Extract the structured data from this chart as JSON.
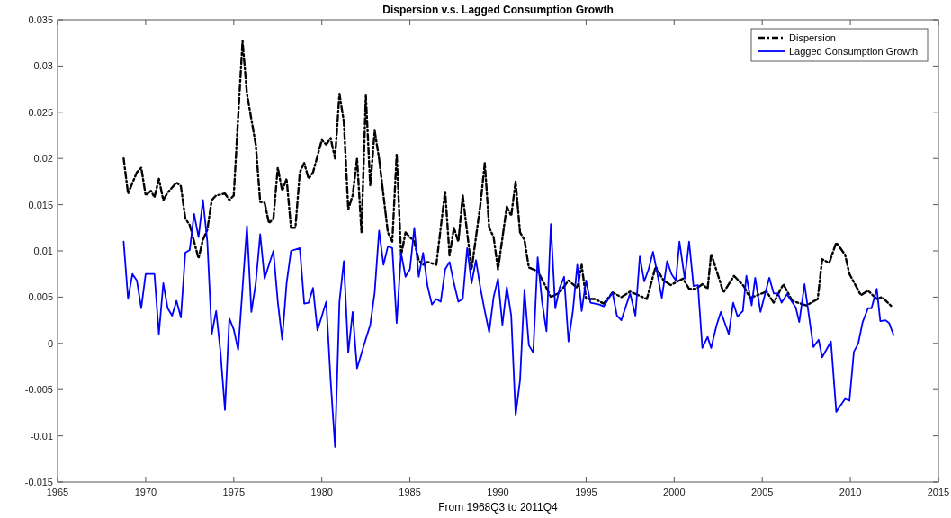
{
  "chart_data": {
    "type": "line",
    "title": "Dispersion v.s. Lagged Consumption Growth",
    "xlabel": "From 1968Q3 to 2011Q4",
    "xlim": [
      1965,
      2015
    ],
    "xticks": [
      1965,
      1970,
      1975,
      1980,
      1985,
      1990,
      1995,
      2000,
      2005,
      2010,
      2015
    ],
    "ylim": [
      -0.015,
      0.035
    ],
    "yticks": [
      -0.015,
      -0.01,
      -0.005,
      0,
      0.005,
      0.01,
      0.015,
      0.02,
      0.025,
      0.03,
      0.035
    ],
    "grid": false,
    "legend": "top right",
    "series": [
      {
        "name": "Dispersion",
        "color": "#000000",
        "line_style": "dashed",
        "x": [
          1968.75,
          1969,
          1969.5,
          1969.75,
          1970,
          1970.3,
          1970.5,
          1970.75,
          1971,
          1971.25,
          1971.75,
          1972,
          1972.25,
          1972.5,
          1973,
          1973.25,
          1973.5,
          1973.75,
          1974,
          1974.5,
          1974.75,
          1975,
          1975.25,
          1975.5,
          1975.75,
          1976.25,
          1976.5,
          1976.75,
          1977,
          1977.25,
          1977.5,
          1977.75,
          1978,
          1978.25,
          1978.5,
          1978.75,
          1979,
          1979.25,
          1979.5,
          1980,
          1980.25,
          1980.5,
          1980.75,
          1981,
          1981.25,
          1981.5,
          1981.75,
          1982,
          1982.25,
          1982.5,
          1982.75,
          1983,
          1983.25,
          1983.75,
          1984,
          1984.25,
          1984.5,
          1984.75,
          1985.25,
          1985.5,
          1985.75,
          1986,
          1986.5,
          1987,
          1987.25,
          1987.5,
          1987.75,
          1988,
          1988.5,
          1989,
          1989.25,
          1989.5,
          1989.75,
          1990,
          1990.5,
          1990.75,
          1991,
          1991.25,
          1991.5,
          1991.75,
          1992.25,
          1992.75,
          1993,
          1993.5,
          1994,
          1994.5,
          1994.75,
          1995,
          1995.5,
          1996,
          1996.5,
          1997,
          1997.5,
          1998.45,
          1998.95,
          1999.4,
          1999.8,
          2000.5,
          2000.85,
          2001.25,
          2001.6,
          2001.9,
          2002.1,
          2002.8,
          2003.4,
          2003.95,
          2004.3,
          2005.25,
          2005.65,
          2006.2,
          2006.7,
          2007.5,
          2008.15,
          2008.4,
          2008.8,
          2009.2,
          2009.7,
          2009.95,
          2010.6,
          2011,
          2011.5,
          2011.8,
          2012.4
        ],
        "values": [
          0.02,
          0.0162,
          0.0185,
          0.019,
          0.016,
          0.0165,
          0.0158,
          0.0178,
          0.0155,
          0.0163,
          0.0174,
          0.017,
          0.0135,
          0.0128,
          0.0092,
          0.0112,
          0.0123,
          0.0155,
          0.016,
          0.0162,
          0.0155,
          0.016,
          0.0245,
          0.0327,
          0.027,
          0.0215,
          0.0153,
          0.0152,
          0.013,
          0.0135,
          0.019,
          0.0165,
          0.0178,
          0.0125,
          0.0125,
          0.0185,
          0.0195,
          0.0178,
          0.0185,
          0.022,
          0.0215,
          0.0222,
          0.02,
          0.027,
          0.024,
          0.0145,
          0.016,
          0.02,
          0.012,
          0.0268,
          0.017,
          0.023,
          0.02,
          0.012,
          0.011,
          0.0205,
          0.0095,
          0.012,
          0.011,
          0.009,
          0.0085,
          0.0088,
          0.0085,
          0.0165,
          0.0095,
          0.0125,
          0.011,
          0.016,
          0.008,
          0.015,
          0.0195,
          0.0125,
          0.0115,
          0.008,
          0.0148,
          0.0138,
          0.0175,
          0.012,
          0.0112,
          0.0082,
          0.0078,
          0.006,
          0.005,
          0.0055,
          0.0068,
          0.006,
          0.0085,
          0.0048,
          0.0048,
          0.0043,
          0.0055,
          0.005,
          0.0056,
          0.0048,
          0.0083,
          0.0068,
          0.0063,
          0.007,
          0.0059,
          0.0059,
          0.0064,
          0.0059,
          0.0097,
          0.0055,
          0.0073,
          0.0062,
          0.0049,
          0.0056,
          0.0044,
          0.0064,
          0.0046,
          0.0041,
          0.0048,
          0.0091,
          0.0087,
          0.0109,
          0.0096,
          0.0075,
          0.0052,
          0.0057,
          0.0048,
          0.005,
          0.0039
        ]
      },
      {
        "name": "Lagged Consumption Growth",
        "color": "#0000ff",
        "line_style": "solid",
        "x": [
          1968.75,
          1969,
          1969.25,
          1969.5,
          1969.75,
          1970,
          1970.5,
          1970.75,
          1971,
          1971.25,
          1971.5,
          1971.75,
          1972,
          1972.25,
          1972.5,
          1972.75,
          1973,
          1973.25,
          1973.5,
          1973.75,
          1974,
          1974.25,
          1974.5,
          1974.75,
          1975,
          1975.25,
          1975.5,
          1975.75,
          1976,
          1976.25,
          1976.5,
          1976.75,
          1977.25,
          1977.5,
          1977.75,
          1978,
          1978.25,
          1978.75,
          1979,
          1979.25,
          1979.5,
          1979.75,
          1980.25,
          1980.5,
          1980.75,
          1981,
          1981.25,
          1981.5,
          1981.75,
          1982,
          1982.5,
          1982.75,
          1983,
          1983.25,
          1983.5,
          1983.75,
          1984,
          1984.25,
          1984.5,
          1984.75,
          1985,
          1985.25,
          1985.5,
          1985.75,
          1986,
          1986.25,
          1986.5,
          1986.75,
          1987,
          1987.25,
          1987.5,
          1987.75,
          1988,
          1988.25,
          1988.5,
          1988.75,
          1989,
          1989.25,
          1989.5,
          1989.75,
          1990,
          1990.25,
          1990.5,
          1990.75,
          1991,
          1991.25,
          1991.5,
          1991.75,
          1992,
          1992.25,
          1992.5,
          1992.75,
          1993,
          1993.25,
          1993.5,
          1993.75,
          1994,
          1994.25,
          1994.5,
          1994.75,
          1995,
          1995.25,
          1995.5,
          1995.75,
          1996,
          1996.5,
          1996.75,
          1997,
          1997.5,
          1997.8,
          1998.05,
          1998.3,
          1998.55,
          1998.8,
          1999.05,
          1999.3,
          1999.6,
          1999.85,
          2000.1,
          2000.3,
          2000.6,
          2000.85,
          2001.1,
          2001.35,
          2001.6,
          2001.9,
          2002.1,
          2002.4,
          2002.65,
          2002.8,
          2003.1,
          2003.35,
          2003.6,
          2003.9,
          2004.1,
          2004.4,
          2004.6,
          2004.9,
          2005.4,
          2005.65,
          2005.9,
          2006.1,
          2006.4,
          2006.9,
          2007.1,
          2007.4,
          2007.9,
          2008.2,
          2008.4,
          2008.9,
          2009.2,
          2009.7,
          2009.95,
          2010.2,
          2010.45,
          2010.7,
          2011,
          2011.2,
          2011.5,
          2011.7,
          2012,
          2012.2,
          2012.45
        ],
        "values": [
          0.011,
          0.0048,
          0.0075,
          0.0068,
          0.0038,
          0.0075,
          0.0075,
          0.001,
          0.0065,
          0.0038,
          0.003,
          0.0046,
          0.0028,
          0.0098,
          0.0101,
          0.014,
          0.0115,
          0.0155,
          0.011,
          0.001,
          0.0035,
          -0.001,
          -0.0072,
          0.0027,
          0.0015,
          -0.0007,
          0.006,
          0.0127,
          0.0034,
          0.0065,
          0.0118,
          0.007,
          0.01,
          0.0045,
          0.0004,
          0.0065,
          0.01,
          0.0103,
          0.0043,
          0.0044,
          0.006,
          0.0014,
          0.0045,
          -0.004,
          -0.0112,
          0.0045,
          0.0089,
          -0.001,
          0.0034,
          -0.0027,
          0.0005,
          0.002,
          0.0055,
          0.0122,
          0.0085,
          0.0105,
          0.0103,
          0.0022,
          0.0098,
          0.0072,
          0.008,
          0.0125,
          0.0072,
          0.0098,
          0.0062,
          0.0042,
          0.0048,
          0.0045,
          0.008,
          0.0088,
          0.0065,
          0.0045,
          0.0048,
          0.0103,
          0.0065,
          0.009,
          0.006,
          0.0035,
          0.0012,
          0.005,
          0.007,
          0.002,
          0.0061,
          0.003,
          -0.0078,
          -0.004,
          0.0058,
          -0.0002,
          -0.001,
          0.0093,
          0.0045,
          0.0013,
          0.0129,
          0.0038,
          0.006,
          0.0072,
          0.0002,
          0.0035,
          0.0085,
          0.0035,
          0.0068,
          0.0044,
          0.0043,
          0.0042,
          0.004,
          0.0055,
          0.003,
          0.0025,
          0.0054,
          0.003,
          0.0094,
          0.0067,
          0.008,
          0.0099,
          0.0075,
          0.0049,
          0.0089,
          0.0075,
          0.0068,
          0.011,
          0.007,
          0.011,
          0.0062,
          0.0063,
          -0.0005,
          0.0007,
          -0.0005,
          0.0019,
          0.0034,
          0.0026,
          0.001,
          0.0044,
          0.0029,
          0.0035,
          0.0073,
          0.0041,
          0.0071,
          0.0034,
          0.0071,
          0.0054,
          0.0054,
          0.0044,
          0.0053,
          0.0039,
          0.0023,
          0.0064,
          -0.0004,
          0.0004,
          -0.0015,
          0.0002,
          -0.0074,
          -0.006,
          -0.0062,
          -0.0009,
          0,
          0.0023,
          0.0038,
          0.0038,
          0.0059,
          0.0024,
          0.0025,
          0.0022,
          0.0009
        ]
      }
    ]
  }
}
